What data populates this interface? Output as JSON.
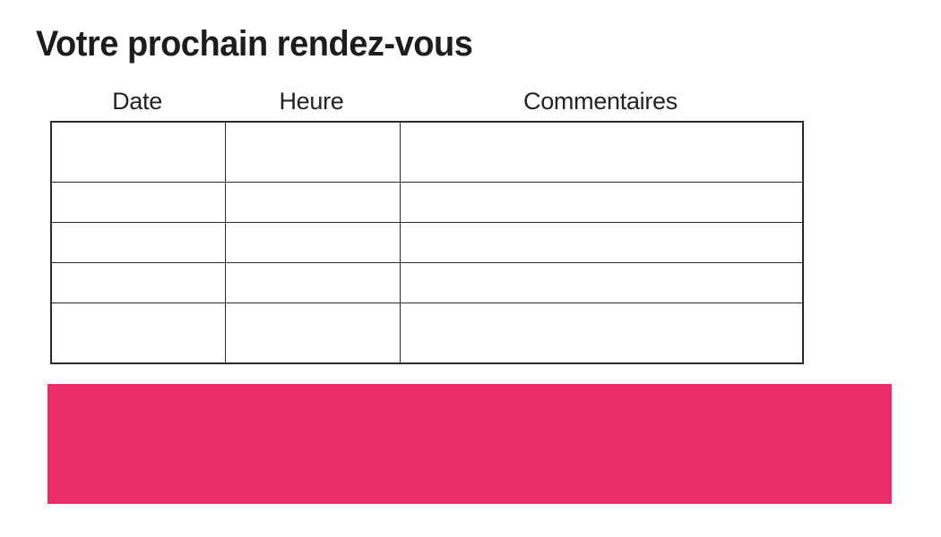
{
  "page": {
    "title": "Votre prochain rendez-vous"
  },
  "table": {
    "columns": [
      {
        "label": "Date"
      },
      {
        "label": "Heure"
      },
      {
        "label": "Commentaires"
      }
    ],
    "rows": [
      [
        "",
        "",
        ""
      ],
      [
        "",
        "",
        ""
      ],
      [
        "",
        "",
        ""
      ],
      [
        "",
        "",
        ""
      ],
      [
        "",
        "",
        ""
      ]
    ]
  },
  "colors": {
    "accent_pink": "#ed2d68",
    "border": "#2b2b2b",
    "text": "#1d1d1b"
  }
}
